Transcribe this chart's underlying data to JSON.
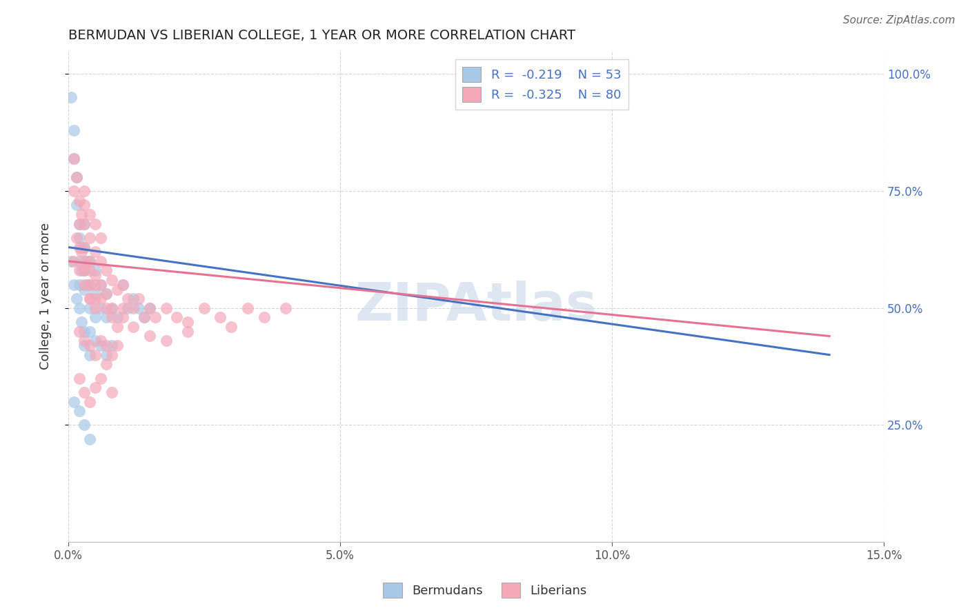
{
  "title": "BERMUDAN VS LIBERIAN COLLEGE, 1 YEAR OR MORE CORRELATION CHART",
  "source": "Source: ZipAtlas.com",
  "ylabel": "College, 1 year or more",
  "xlim": [
    0.0,
    0.15
  ],
  "ylim": [
    0.0,
    1.05
  ],
  "xticks": [
    0.0,
    0.05,
    0.1,
    0.15
  ],
  "xticklabels": [
    "0.0%",
    "5.0%",
    "10.0%",
    "15.0%"
  ],
  "yticks_right": [
    0.25,
    0.5,
    0.75,
    1.0
  ],
  "ytick_right_labels": [
    "25.0%",
    "50.0%",
    "75.0%",
    "100.0%"
  ],
  "blue_color": "#A8C8E8",
  "pink_color": "#F4A8B8",
  "blue_line_color": "#4472C4",
  "pink_line_color": "#E87090",
  "watermark": "ZIPAtlas",
  "blue_x": [
    0.0005,
    0.001,
    0.001,
    0.0015,
    0.0015,
    0.002,
    0.002,
    0.002,
    0.0025,
    0.0025,
    0.003,
    0.003,
    0.003,
    0.003,
    0.0035,
    0.0035,
    0.004,
    0.004,
    0.004,
    0.005,
    0.005,
    0.005,
    0.006,
    0.006,
    0.007,
    0.007,
    0.008,
    0.009,
    0.01,
    0.011,
    0.012,
    0.013,
    0.014,
    0.015,
    0.0005,
    0.001,
    0.0015,
    0.002,
    0.0025,
    0.003,
    0.003,
    0.004,
    0.004,
    0.005,
    0.006,
    0.007,
    0.008,
    0.001,
    0.002,
    0.003,
    0.004,
    0.002,
    0.003
  ],
  "blue_y": [
    0.95,
    0.88,
    0.82,
    0.78,
    0.72,
    0.68,
    0.65,
    0.6,
    0.63,
    0.58,
    0.68,
    0.63,
    0.58,
    0.54,
    0.6,
    0.55,
    0.6,
    0.55,
    0.5,
    0.58,
    0.53,
    0.48,
    0.55,
    0.5,
    0.53,
    0.48,
    0.5,
    0.48,
    0.55,
    0.5,
    0.52,
    0.5,
    0.48,
    0.5,
    0.6,
    0.55,
    0.52,
    0.5,
    0.47,
    0.45,
    0.42,
    0.45,
    0.4,
    0.43,
    0.42,
    0.4,
    0.42,
    0.3,
    0.28,
    0.25,
    0.22,
    0.55,
    0.58
  ],
  "pink_x": [
    0.001,
    0.001,
    0.0015,
    0.002,
    0.002,
    0.002,
    0.0025,
    0.003,
    0.003,
    0.003,
    0.003,
    0.004,
    0.004,
    0.004,
    0.005,
    0.005,
    0.005,
    0.006,
    0.006,
    0.007,
    0.007,
    0.008,
    0.008,
    0.009,
    0.01,
    0.011,
    0.012,
    0.013,
    0.014,
    0.015,
    0.016,
    0.018,
    0.02,
    0.022,
    0.025,
    0.028,
    0.03,
    0.033,
    0.036,
    0.04,
    0.001,
    0.0015,
    0.002,
    0.0025,
    0.003,
    0.004,
    0.004,
    0.005,
    0.006,
    0.007,
    0.008,
    0.009,
    0.01,
    0.002,
    0.003,
    0.004,
    0.005,
    0.006,
    0.007,
    0.008,
    0.002,
    0.003,
    0.004,
    0.005,
    0.006,
    0.007,
    0.008,
    0.009,
    0.01,
    0.012,
    0.015,
    0.018,
    0.022,
    0.003,
    0.004,
    0.005,
    0.003,
    0.004,
    0.005,
    0.006
  ],
  "pink_y": [
    0.82,
    0.75,
    0.78,
    0.73,
    0.68,
    0.63,
    0.7,
    0.75,
    0.68,
    0.63,
    0.58,
    0.65,
    0.6,
    0.55,
    0.62,
    0.57,
    0.52,
    0.6,
    0.55,
    0.58,
    0.53,
    0.56,
    0.5,
    0.54,
    0.55,
    0.52,
    0.5,
    0.52,
    0.48,
    0.5,
    0.48,
    0.5,
    0.48,
    0.47,
    0.5,
    0.48,
    0.46,
    0.5,
    0.48,
    0.5,
    0.6,
    0.65,
    0.58,
    0.62,
    0.6,
    0.58,
    0.52,
    0.55,
    0.52,
    0.5,
    0.48,
    0.46,
    0.5,
    0.35,
    0.32,
    0.3,
    0.33,
    0.35,
    0.38,
    0.32,
    0.45,
    0.43,
    0.42,
    0.4,
    0.43,
    0.42,
    0.4,
    0.42,
    0.48,
    0.46,
    0.44,
    0.43,
    0.45,
    0.55,
    0.52,
    0.5,
    0.72,
    0.7,
    0.68,
    0.65
  ],
  "blue_line_x0": 0.0,
  "blue_line_x1": 0.14,
  "blue_line_y0": 0.63,
  "blue_line_y1": 0.4,
  "pink_line_x0": 0.0,
  "pink_line_x1": 0.14,
  "pink_line_y0": 0.6,
  "pink_line_y1": 0.44
}
